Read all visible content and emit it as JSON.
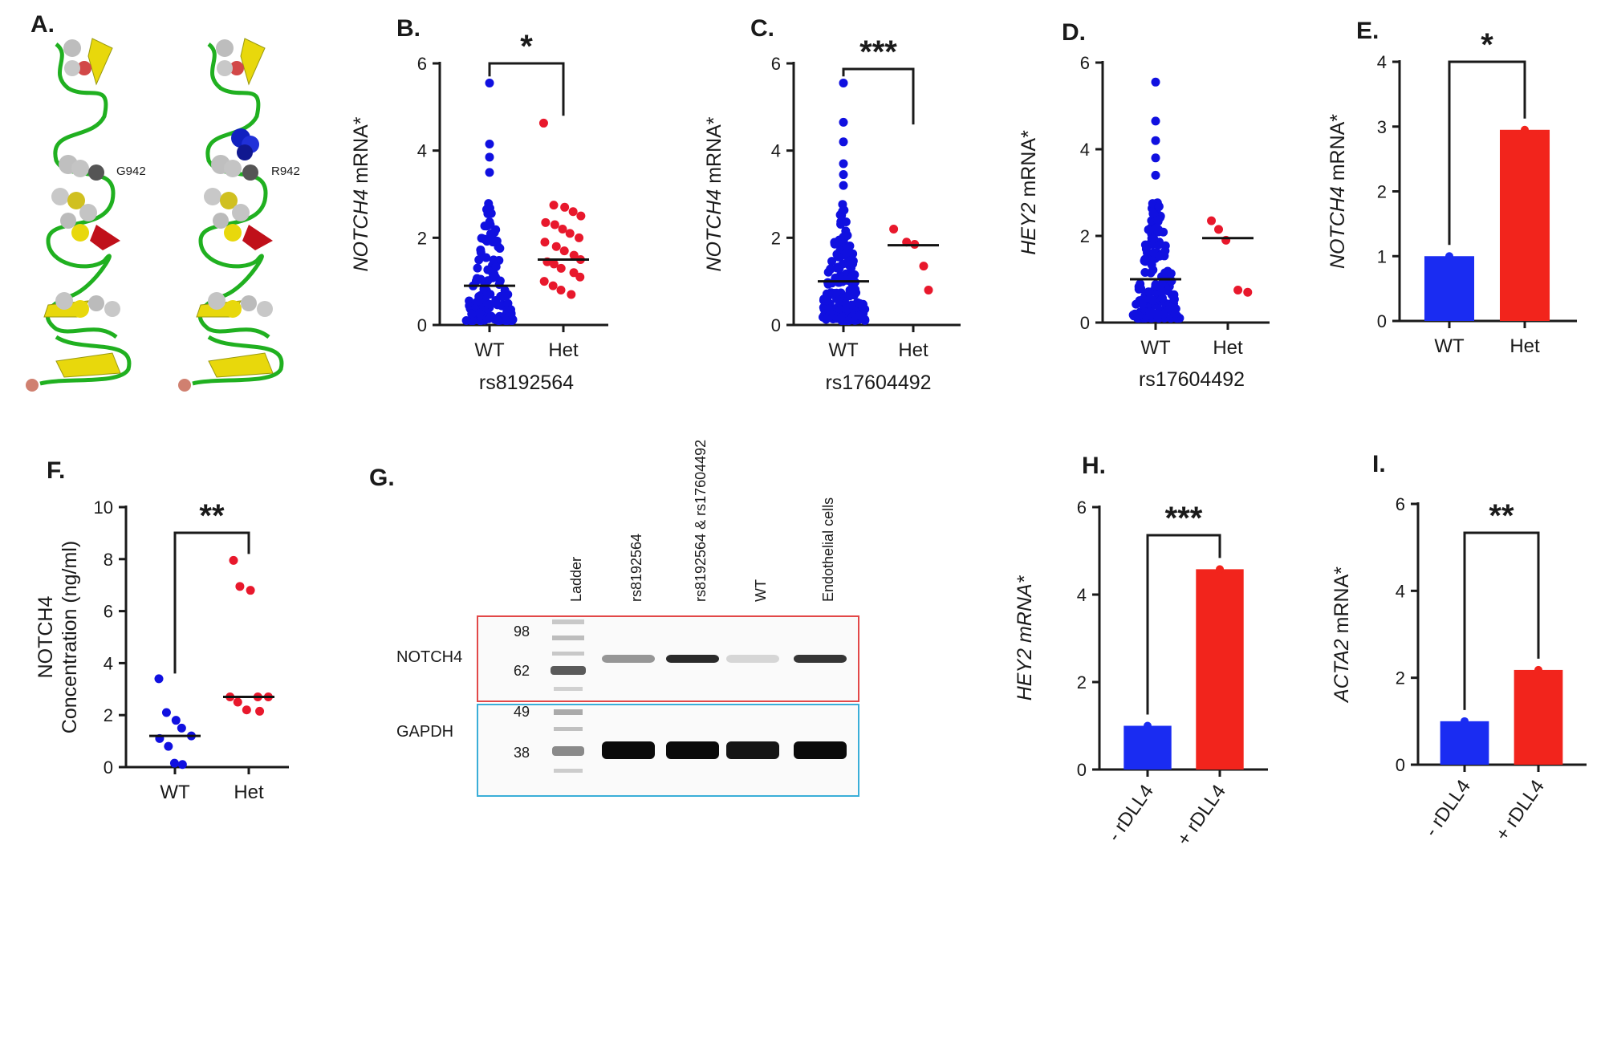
{
  "panel_labels": {
    "a": "A.",
    "f": "F.",
    "g": "G."
  },
  "structure": {
    "left_label": "G942",
    "right_label": "R942"
  },
  "colors": {
    "blue": "#1010e0",
    "red": "#e8182c",
    "bar_blue": "#1a2cf2",
    "bar_red": "#f2241c",
    "helix": "#e8d80c",
    "backbone": "#20b020",
    "loop": "#c0101a"
  },
  "chart_data": [
    {
      "id": "B",
      "label": "B.",
      "type": "scatter",
      "title": "",
      "ylabel_italic": "NOTCH4",
      "ylabel_rest": " mRNA*",
      "xlabel": "rs8192564",
      "categories": [
        "WT",
        "Het"
      ],
      "yticks": [
        "0",
        "2",
        "4",
        "6"
      ],
      "ylim": [
        0,
        6
      ],
      "significance": "*",
      "medians": [
        0.9,
        1.5
      ],
      "series": [
        {
          "name": "WT",
          "n": 130,
          "min": 0.1,
          "max": 5.55,
          "outliers": [
            5.55,
            4.15,
            3.85,
            3.5
          ]
        },
        {
          "name": "Het",
          "values": [
            4.63,
            2.75,
            2.7,
            2.6,
            2.5,
            2.35,
            2.3,
            2.2,
            2.1,
            2.0,
            1.9,
            1.8,
            1.7,
            1.6,
            1.5,
            1.45,
            1.4,
            1.3,
            1.2,
            1.1,
            1.0,
            0.9,
            0.8,
            0.7
          ]
        }
      ]
    },
    {
      "id": "C",
      "label": "C.",
      "type": "scatter",
      "ylabel_italic": "NOTCH4",
      "ylabel_rest": " mRNA*",
      "xlabel": "rs17604492",
      "categories": [
        "WT",
        "Het"
      ],
      "yticks": [
        "0",
        "2",
        "4",
        "6"
      ],
      "ylim": [
        0,
        6
      ],
      "significance": "***",
      "medians": [
        1.0,
        1.83
      ],
      "series": [
        {
          "name": "WT",
          "n": 170,
          "min": 0.1,
          "max": 5.55,
          "outliers": [
            5.55,
            4.65,
            4.2,
            3.7,
            3.45,
            3.2
          ]
        },
        {
          "name": "Het",
          "values": [
            2.2,
            1.9,
            1.85,
            1.35,
            0.8
          ]
        }
      ]
    },
    {
      "id": "D",
      "label": "D.",
      "type": "scatter",
      "ylabel_italic": "HEY2",
      "ylabel_rest": " mRNA*",
      "xlabel": "rs17604492",
      "categories": [
        "WT",
        "Het"
      ],
      "yticks": [
        "0",
        "2",
        "4",
        "6"
      ],
      "ylim": [
        0,
        6
      ],
      "significance": "",
      "medians": [
        1.0,
        1.95
      ],
      "series": [
        {
          "name": "WT",
          "n": 170,
          "min": 0.1,
          "max": 5.55,
          "outliers": [
            5.55,
            4.65,
            4.2,
            3.8,
            3.4
          ]
        },
        {
          "name": "Het",
          "values": [
            2.35,
            2.15,
            1.9,
            0.75,
            0.7
          ]
        }
      ]
    },
    {
      "id": "E",
      "label": "E.",
      "type": "bar",
      "ylabel_italic": "NOTCH4",
      "ylabel_rest": " mRNA*",
      "categories": [
        "WT",
        "Het"
      ],
      "values": [
        1.0,
        2.95
      ],
      "yticks": [
        "0",
        "1",
        "2",
        "3",
        "4"
      ],
      "ylim": [
        0,
        4
      ],
      "significance": "*"
    },
    {
      "id": "F",
      "type": "scatter",
      "ylabel_line1": "NOTCH4",
      "ylabel_line2": "Concentration (ng/ml)",
      "categories": [
        "WT",
        "Het"
      ],
      "yticks": [
        "0",
        "2",
        "4",
        "6",
        "8",
        "10"
      ],
      "ylim": [
        0,
        10
      ],
      "significance": "**",
      "medians": [
        1.2,
        2.7
      ],
      "series": [
        {
          "name": "WT",
          "values": [
            3.4,
            2.1,
            1.8,
            1.5,
            1.2,
            1.1,
            0.8,
            0.15,
            0.1
          ]
        },
        {
          "name": "Het",
          "values": [
            7.95,
            6.95,
            6.8,
            2.7,
            2.7,
            2.7,
            2.5,
            2.2,
            2.15
          ]
        }
      ]
    },
    {
      "id": "H",
      "label": "H.",
      "type": "bar",
      "ylabel_italic": "HEY2 mRNA*",
      "ylabel_rest": "",
      "categories": [
        "- rDLL4",
        "+ rDLL4"
      ],
      "values": [
        1.0,
        4.58
      ],
      "yticks": [
        "0",
        "2",
        "4",
        "6"
      ],
      "ylim": [
        0,
        6
      ],
      "significance": "***"
    },
    {
      "id": "I",
      "label": "I.",
      "type": "bar",
      "ylabel_italic": "ACTA2",
      "ylabel_rest": " mRNA*",
      "categories": [
        "- rDLL4",
        "+ rDLL4"
      ],
      "values": [
        1.0,
        2.18
      ],
      "yticks": [
        "0",
        "2",
        "4",
        "6"
      ],
      "ylim": [
        0,
        6
      ],
      "significance": "**"
    }
  ],
  "western": {
    "lanes": [
      "Ladder",
      "rs8192564",
      "rs8192564 & rs17604492",
      "WT",
      "Endothelial cells"
    ],
    "notch4": {
      "name": "NOTCH4",
      "markers": [
        "98",
        "62"
      ],
      "band_intensity": [
        0,
        0.35,
        0.85,
        0.05,
        0.8
      ]
    },
    "gapdh": {
      "name": "GAPDH",
      "markers": [
        "49",
        "38"
      ],
      "band_intensity": [
        0,
        1,
        1,
        0.95,
        1
      ]
    }
  }
}
